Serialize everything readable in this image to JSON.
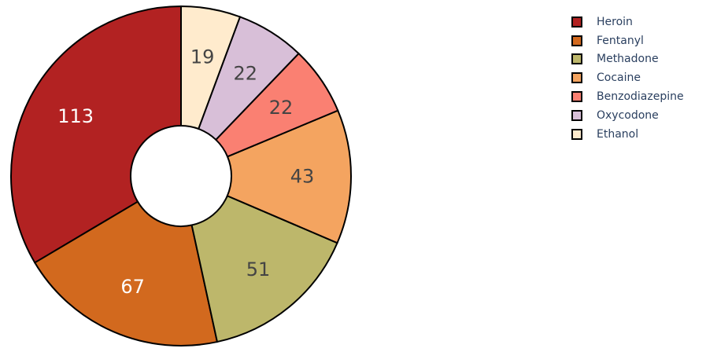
{
  "chart_data": {
    "type": "pie",
    "hole": true,
    "direction": "counterclockwise",
    "categories": [
      "Heroin",
      "Fentanyl",
      "Methadone",
      "Cocaine",
      "Benzodiazepine",
      "Oxycodone",
      "Ethanol"
    ],
    "values": [
      113,
      67,
      51,
      43,
      22,
      22,
      19
    ],
    "colors": [
      "#b22222",
      "#d2691e",
      "#bdb76b",
      "#f4a460",
      "#fa8072",
      "#d8bfd8",
      "#ffebcd"
    ],
    "label_colors": [
      "#ffffff",
      "#ffffff",
      "#444444",
      "#444444",
      "#444444",
      "#444444",
      "#444444"
    ],
    "legend_position": "top-right"
  }
}
